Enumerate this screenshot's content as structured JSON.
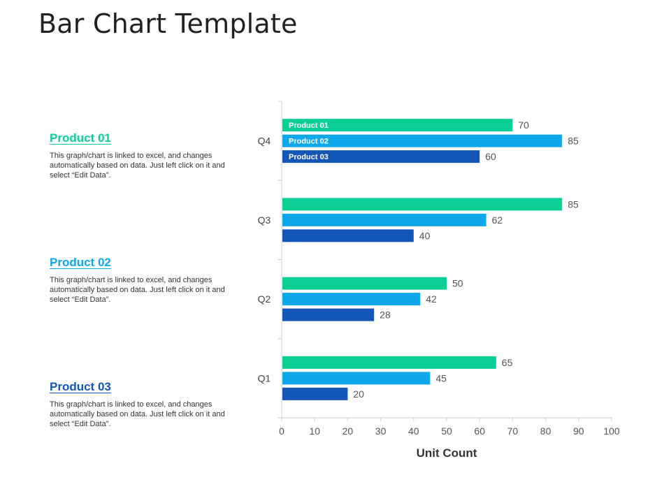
{
  "page": {
    "title": "Bar Chart Template"
  },
  "legend": [
    {
      "title": "Product 01",
      "color": "#0ccf96",
      "description": "This graph/chart is linked to excel, and changes automatically based on data. Just left click on it and select “Edit Data”."
    },
    {
      "title": "Product 02",
      "color": "#0ea7ea",
      "description": "This graph/chart is linked to excel, and changes automatically based on data. Just left click on it and select “Edit Data”."
    },
    {
      "title": "Product 03",
      "color": "#1456b8",
      "description": "This graph/chart is linked to excel, and changes automatically based on data. Just left click on it and select “Edit Data”."
    }
  ],
  "chart_data": {
    "type": "bar",
    "orientation": "horizontal",
    "title": "",
    "xlabel": "Unit Count",
    "ylabel": "",
    "xlim": [
      0,
      100
    ],
    "xticks": [
      0,
      10,
      20,
      30,
      40,
      50,
      60,
      70,
      80,
      90,
      100
    ],
    "categories": [
      "Q1",
      "Q2",
      "Q3",
      "Q4"
    ],
    "series": [
      {
        "name": "Product 01",
        "color": "#0ccf96",
        "values": [
          65,
          50,
          85,
          70
        ]
      },
      {
        "name": "Product 02",
        "color": "#0ea7ea",
        "values": [
          45,
          42,
          62,
          85
        ]
      },
      {
        "name": "Product 03",
        "color": "#1456b8",
        "values": [
          20,
          28,
          40,
          60
        ]
      }
    ],
    "in_bar_labels_category": "Q4",
    "grid": false
  }
}
